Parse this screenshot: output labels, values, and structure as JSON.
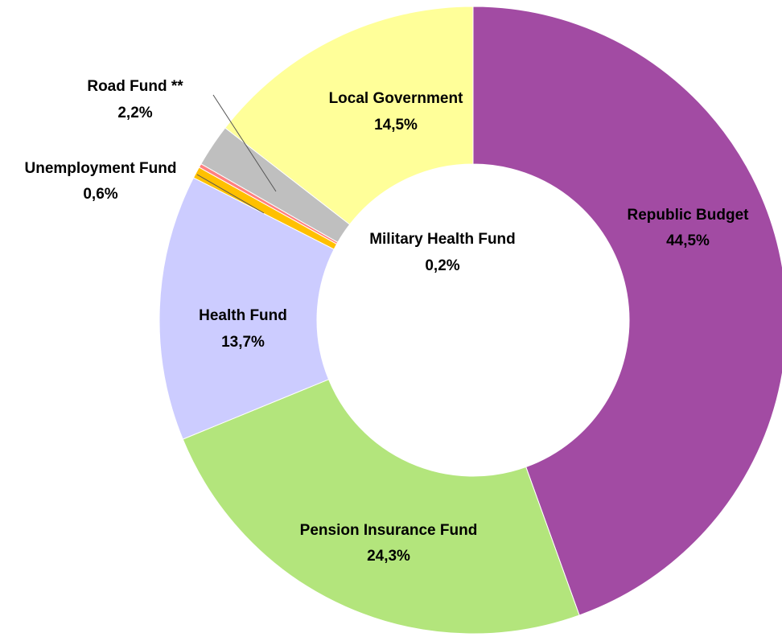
{
  "chart_data": {
    "type": "donut",
    "categories": [
      "Republic Budget",
      "Pension Insurance Fund",
      "Health Fund",
      "Unemployment Fund",
      "Military Health Fund",
      "Road Fund **",
      "Local Government"
    ],
    "values": [
      44.5,
      24.3,
      13.7,
      0.6,
      0.2,
      2.2,
      14.5
    ],
    "value_labels": [
      "44,5%",
      "24,3%",
      "13,7%",
      "0,6%",
      "0,2%",
      "2,2%",
      "14,5%"
    ],
    "colors": [
      "#a24ba3",
      "#b3e57c",
      "#ccccff",
      "#ffc000",
      "#ff8080",
      "#bfbfbf",
      "#ffff99"
    ]
  }
}
